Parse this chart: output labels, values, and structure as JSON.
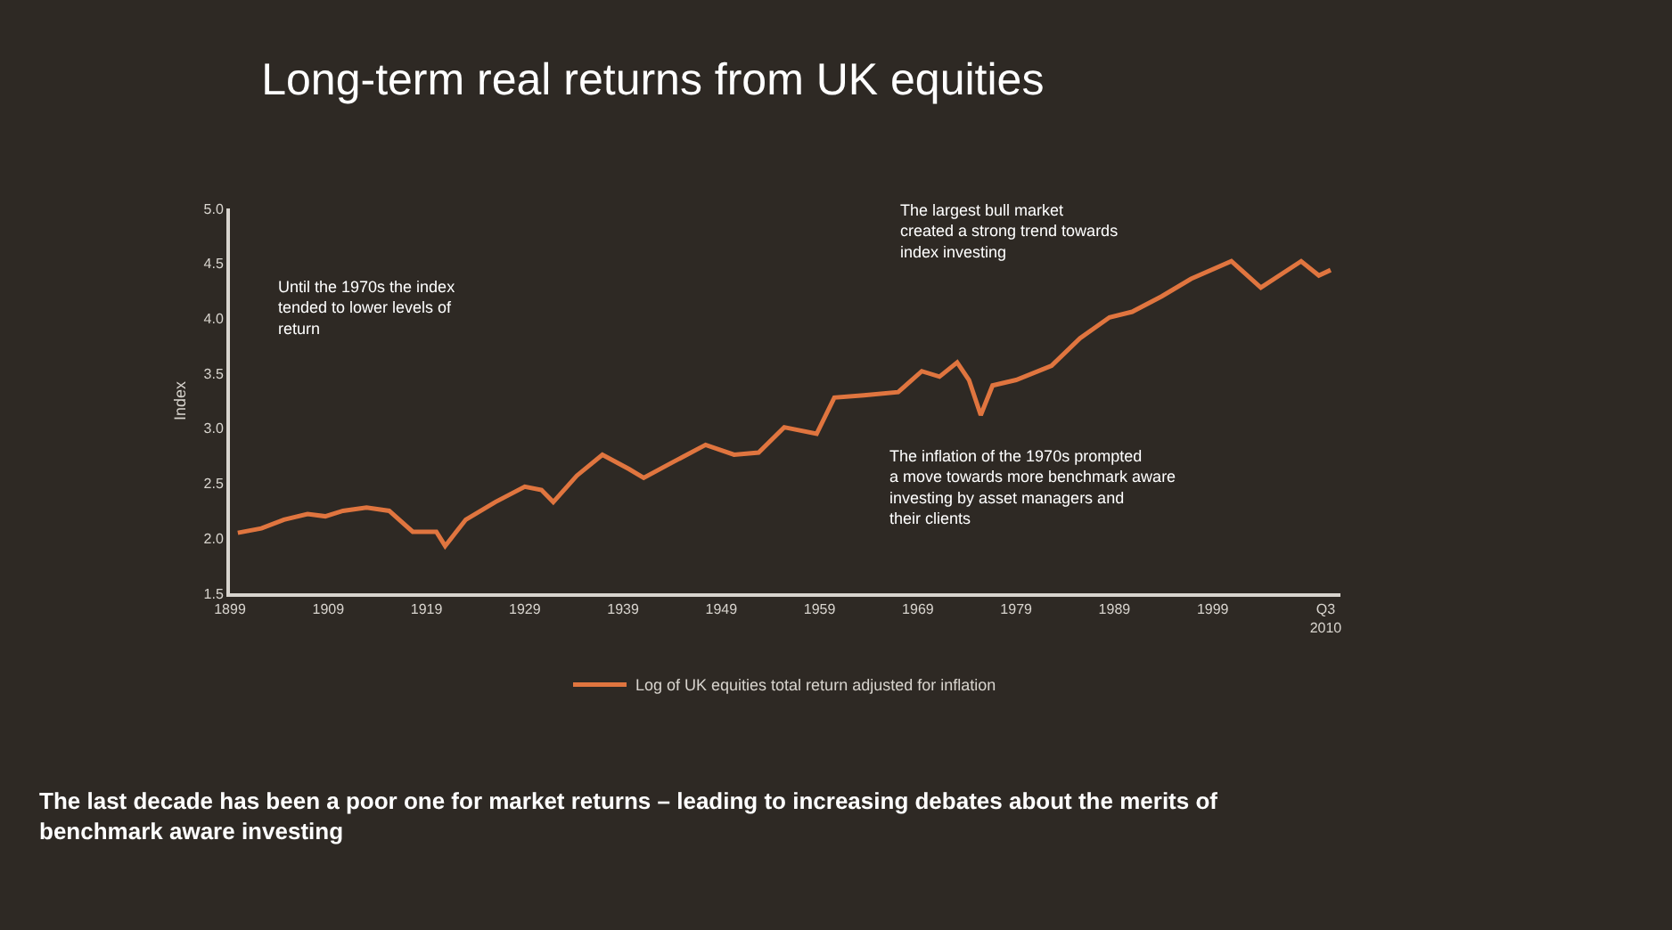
{
  "chart_data": {
    "type": "line",
    "title": "Long-term real returns from UK equities",
    "ylabel": "Index",
    "x": [
      1899.8,
      1902.2,
      1904.5,
      1906.9,
      1908.7,
      1910.5,
      1912.9,
      1915.2,
      1917.6,
      1920,
      1920.9,
      1923,
      1926,
      1929,
      1930.7,
      1931.9,
      1934.3,
      1936.9,
      1939.6,
      1941.1,
      1943.8,
      1947.4,
      1950.3,
      1952.8,
      1955.4,
      1958.7,
      1960.5,
      1963.5,
      1967,
      1969.4,
      1971.2,
      1973,
      1974.2,
      1975.4,
      1976.6,
      1979,
      1982.6,
      1985.5,
      1988.5,
      1990.8,
      1993.8,
      1996.8,
      2000.9,
      2003.9,
      2008,
      2009.8,
      2011
    ],
    "series": [
      {
        "name": "Log of UK equities total return adjusted for inflation",
        "color": "#e0753f",
        "values": [
          2.05,
          2.09,
          2.17,
          2.22,
          2.2,
          2.25,
          2.28,
          2.25,
          2.06,
          2.06,
          1.93,
          2.17,
          2.33,
          2.47,
          2.44,
          2.33,
          2.57,
          2.76,
          2.63,
          2.55,
          2.68,
          2.85,
          2.76,
          2.78,
          3.01,
          2.95,
          3.28,
          3.3,
          3.33,
          3.52,
          3.47,
          3.6,
          3.44,
          3.12,
          3.39,
          3.44,
          3.57,
          3.82,
          4.01,
          4.06,
          4.2,
          4.36,
          4.52,
          4.28,
          4.52,
          4.39,
          4.44
        ]
      }
    ],
    "xlim": [
      1899,
      2012
    ],
    "xticks": [
      1899,
      1909,
      1919,
      1929,
      1939,
      1949,
      1959,
      1969,
      1979,
      1989,
      1999,
      {
        "value": 2010.5,
        "label": "Q3 2010"
      }
    ],
    "ylim": [
      1.5,
      5.0
    ],
    "yticks": [
      {
        "value": 1.5,
        "label": "1.5"
      },
      {
        "value": 2,
        "label": "2.0"
      },
      {
        "value": 2.5,
        "label": "2.5"
      },
      {
        "value": 3,
        "label": "3.0"
      },
      {
        "value": 3.5,
        "label": "3.5"
      },
      {
        "value": 4,
        "label": "4.0"
      },
      {
        "value": 4.5,
        "label": "4.5"
      },
      {
        "value": 5,
        "label": "5.0"
      }
    ],
    "legend": "bottom",
    "marker": "none",
    "line_style": "solid",
    "annotations": [
      "Until the 1970s the index tended to lower levels of return",
      "The largest bull market created a strong trend towards index investing",
      "The inflation of the 1970s prompted a move towards more benchmark aware investing by asset managers and their clients",
      "The last decade has been a poor one for market returns – leading to increasing debates about the merits of benchmark aware investing"
    ]
  }
}
